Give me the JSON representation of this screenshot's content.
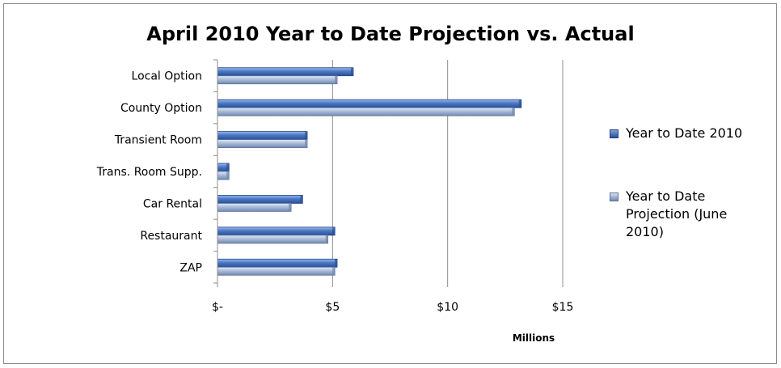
{
  "chart_data": {
    "type": "bar",
    "orientation": "horizontal",
    "title": "April 2010 Year to Date Projection vs. Actual",
    "xlabel": "Millions",
    "ylabel": "",
    "categories": [
      "Local Option",
      "County Option",
      "Transient Room",
      "Trans. Room Supp.",
      "Car Rental",
      "Restaurant",
      "ZAP"
    ],
    "series": [
      {
        "name": "Year to Date 2010",
        "values": [
          5.9,
          13.2,
          3.9,
          0.5,
          3.7,
          5.1,
          5.2
        ],
        "color": "#3f6fc0"
      },
      {
        "name": "Year to Date Projection  (June 2010)",
        "values": [
          5.2,
          12.9,
          3.9,
          0.5,
          3.2,
          4.8,
          5.1
        ],
        "color": "#8aa3c9"
      }
    ],
    "xlim": [
      0,
      15
    ],
    "xticks": [
      0,
      5,
      10,
      15
    ],
    "xtick_labels": [
      "$-",
      "$5",
      "$10",
      "$15"
    ],
    "grid": "vertical",
    "legend_position": "right"
  }
}
